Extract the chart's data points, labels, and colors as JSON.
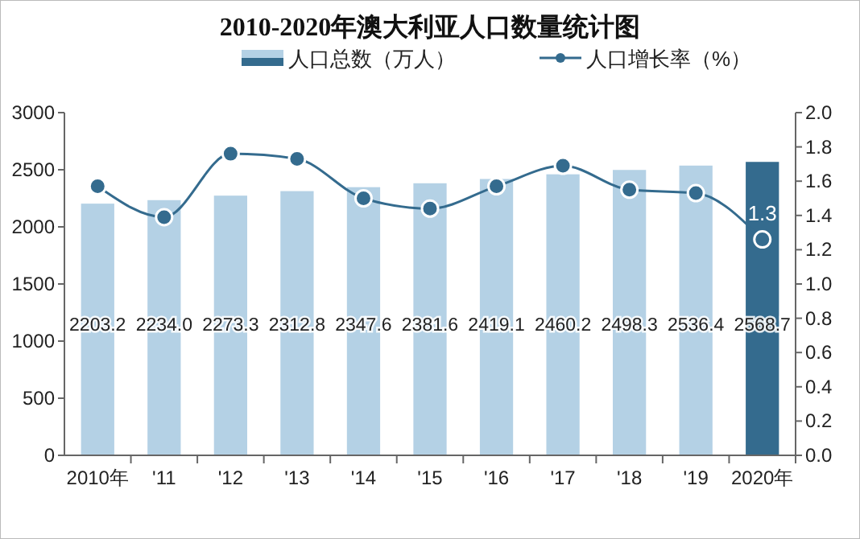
{
  "chart_data": {
    "type": "bar",
    "title": "2010-2020年澳大利亚人口数量统计图",
    "categories": [
      "2010年",
      "'11",
      "'12",
      "'13",
      "'14",
      "'15",
      "'16",
      "'17",
      "'18",
      "'19",
      "2020年"
    ],
    "series": [
      {
        "name": "人口总数（万人）",
        "type": "bar",
        "colors": [
          "#b4d1e5",
          "#b4d1e5",
          "#b4d1e5",
          "#b4d1e5",
          "#b4d1e5",
          "#b4d1e5",
          "#b4d1e5",
          "#b4d1e5",
          "#b4d1e5",
          "#b4d1e5",
          "#346b8e"
        ],
        "values": [
          2203.2,
          2234.0,
          2273.3,
          2312.8,
          2347.6,
          2381.6,
          2419.1,
          2460.2,
          2498.3,
          2536.4,
          2568.7
        ],
        "value_labels": [
          "2203.2",
          "2234.0",
          "2273.3",
          "2312.8",
          "2347.6",
          "2381.6",
          "2419.1",
          "2460.2",
          "2498.3",
          "2536.4",
          "2568.7"
        ]
      },
      {
        "name": "人口增长率（%）",
        "type": "line",
        "axis": "y2",
        "color": "#346b8e",
        "marker": "circle",
        "values": [
          1.57,
          1.39,
          1.76,
          1.73,
          1.5,
          1.44,
          1.57,
          1.69,
          1.55,
          1.53,
          1.26
        ],
        "value_labels": [
          null,
          null,
          null,
          null,
          null,
          null,
          null,
          null,
          null,
          null,
          "1.3"
        ]
      }
    ],
    "data_labels": true,
    "ylim": [
      0,
      3000
    ],
    "yticks": [
      0,
      500,
      1000,
      1500,
      2000,
      2500,
      3000
    ],
    "y2lim": [
      0,
      2.0
    ],
    "y2ticks": [
      {
        "value": 0,
        "label": "0.0"
      },
      {
        "value": 0.2,
        "label": "0.2"
      },
      {
        "value": 0.4,
        "label": "0.4"
      },
      {
        "value": 0.6,
        "label": "0.6"
      },
      {
        "value": 0.8,
        "label": "0.8"
      },
      {
        "value": 1,
        "label": "1.0"
      },
      {
        "value": 1.2,
        "label": "1.2"
      },
      {
        "value": 1.4,
        "label": "1.4"
      },
      {
        "value": 1.6,
        "label": "1.6"
      },
      {
        "value": 1.8,
        "label": "1.8"
      },
      {
        "value": 2,
        "label": "2.0"
      }
    ],
    "grid": false,
    "legend": "top"
  }
}
